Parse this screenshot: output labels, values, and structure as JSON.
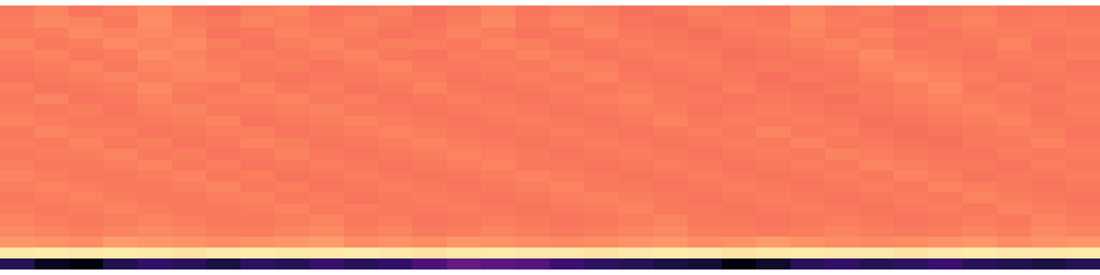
{
  "chart_data": {
    "type": "heatmap",
    "color": "magma",
    "tick_labels": false,
    "zlim": [
      0,
      1
    ],
    "cells": [
      [
        0.72,
        0.74,
        0.71,
        0.73,
        0.75,
        0.72,
        0.7,
        0.73,
        0.74,
        0.71,
        0.72,
        0.73,
        0.7,
        0.72,
        0.74,
        0.71,
        0.73,
        0.72,
        0.7,
        0.71,
        0.73,
        0.72,
        0.71,
        0.74,
        0.72,
        0.73,
        0.7,
        0.72,
        0.73,
        0.71,
        0.72,
        0.71
      ],
      [
        0.73,
        0.75,
        0.74,
        0.72,
        0.76,
        0.73,
        0.72,
        0.74,
        0.73,
        0.72,
        0.74,
        0.72,
        0.71,
        0.73,
        0.75,
        0.72,
        0.74,
        0.73,
        0.71,
        0.7,
        0.72,
        0.73,
        0.72,
        0.75,
        0.73,
        0.72,
        0.71,
        0.73,
        0.74,
        0.72,
        0.73,
        0.72
      ],
      [
        0.72,
        0.73,
        0.75,
        0.74,
        0.75,
        0.74,
        0.71,
        0.72,
        0.74,
        0.73,
        0.73,
        0.71,
        0.72,
        0.74,
        0.73,
        0.71,
        0.72,
        0.74,
        0.72,
        0.71,
        0.7,
        0.72,
        0.73,
        0.74,
        0.72,
        0.74,
        0.72,
        0.71,
        0.73,
        0.73,
        0.72,
        0.73
      ],
      [
        0.74,
        0.72,
        0.73,
        0.75,
        0.74,
        0.75,
        0.73,
        0.71,
        0.73,
        0.74,
        0.72,
        0.73,
        0.73,
        0.72,
        0.74,
        0.73,
        0.71,
        0.72,
        0.73,
        0.72,
        0.71,
        0.71,
        0.72,
        0.73,
        0.74,
        0.73,
        0.71,
        0.72,
        0.72,
        0.74,
        0.71,
        0.72
      ],
      [
        0.73,
        0.74,
        0.72,
        0.73,
        0.76,
        0.74,
        0.72,
        0.73,
        0.72,
        0.73,
        0.74,
        0.72,
        0.71,
        0.73,
        0.72,
        0.74,
        0.73,
        0.71,
        0.72,
        0.73,
        0.72,
        0.7,
        0.71,
        0.72,
        0.73,
        0.75,
        0.73,
        0.72,
        0.71,
        0.73,
        0.72,
        0.73
      ],
      [
        0.72,
        0.73,
        0.74,
        0.72,
        0.74,
        0.75,
        0.73,
        0.72,
        0.73,
        0.71,
        0.73,
        0.74,
        0.72,
        0.72,
        0.73,
        0.72,
        0.74,
        0.73,
        0.71,
        0.72,
        0.73,
        0.71,
        0.72,
        0.71,
        0.72,
        0.74,
        0.74,
        0.73,
        0.72,
        0.72,
        0.73,
        0.71
      ],
      [
        0.71,
        0.72,
        0.73,
        0.74,
        0.73,
        0.74,
        0.74,
        0.72,
        0.71,
        0.72,
        0.72,
        0.73,
        0.73,
        0.71,
        0.72,
        0.73,
        0.72,
        0.74,
        0.72,
        0.71,
        0.72,
        0.72,
        0.7,
        0.72,
        0.71,
        0.73,
        0.75,
        0.74,
        0.73,
        0.71,
        0.72,
        0.72
      ],
      [
        0.73,
        0.71,
        0.72,
        0.73,
        0.75,
        0.73,
        0.72,
        0.74,
        0.72,
        0.73,
        0.71,
        0.72,
        0.74,
        0.72,
        0.71,
        0.72,
        0.73,
        0.72,
        0.73,
        0.72,
        0.71,
        0.73,
        0.71,
        0.7,
        0.72,
        0.72,
        0.73,
        0.75,
        0.72,
        0.73,
        0.71,
        0.73
      ],
      [
        0.72,
        0.74,
        0.71,
        0.72,
        0.74,
        0.72,
        0.73,
        0.73,
        0.74,
        0.72,
        0.73,
        0.71,
        0.72,
        0.73,
        0.72,
        0.71,
        0.72,
        0.73,
        0.74,
        0.72,
        0.72,
        0.71,
        0.72,
        0.71,
        0.7,
        0.72,
        0.73,
        0.74,
        0.73,
        0.72,
        0.72,
        0.72
      ],
      [
        0.73,
        0.72,
        0.73,
        0.71,
        0.73,
        0.74,
        0.72,
        0.72,
        0.73,
        0.74,
        0.72,
        0.72,
        0.71,
        0.72,
        0.73,
        0.72,
        0.71,
        0.72,
        0.73,
        0.73,
        0.71,
        0.72,
        0.73,
        0.72,
        0.71,
        0.71,
        0.72,
        0.73,
        0.74,
        0.73,
        0.71,
        0.73
      ],
      [
        0.74,
        0.73,
        0.72,
        0.72,
        0.72,
        0.73,
        0.74,
        0.71,
        0.72,
        0.73,
        0.74,
        0.73,
        0.72,
        0.71,
        0.72,
        0.73,
        0.72,
        0.71,
        0.72,
        0.74,
        0.72,
        0.73,
        0.72,
        0.73,
        0.72,
        0.7,
        0.71,
        0.72,
        0.73,
        0.74,
        0.72,
        0.72
      ],
      [
        0.72,
        0.74,
        0.73,
        0.73,
        0.71,
        0.72,
        0.73,
        0.73,
        0.71,
        0.72,
        0.73,
        0.74,
        0.73,
        0.72,
        0.71,
        0.72,
        0.73,
        0.72,
        0.71,
        0.72,
        0.73,
        0.72,
        0.74,
        0.72,
        0.73,
        0.71,
        0.7,
        0.71,
        0.72,
        0.73,
        0.73,
        0.71
      ],
      [
        0.73,
        0.72,
        0.74,
        0.72,
        0.73,
        0.71,
        0.72,
        0.74,
        0.73,
        0.71,
        0.72,
        0.73,
        0.74,
        0.73,
        0.72,
        0.71,
        0.72,
        0.73,
        0.72,
        0.71,
        0.72,
        0.73,
        0.72,
        0.74,
        0.72,
        0.72,
        0.71,
        0.7,
        0.72,
        0.72,
        0.74,
        0.72
      ],
      [
        0.72,
        0.73,
        0.73,
        0.74,
        0.72,
        0.73,
        0.71,
        0.72,
        0.74,
        0.72,
        0.71,
        0.72,
        0.73,
        0.74,
        0.73,
        0.72,
        0.71,
        0.72,
        0.73,
        0.72,
        0.71,
        0.72,
        0.73,
        0.72,
        0.74,
        0.73,
        0.72,
        0.71,
        0.71,
        0.73,
        0.72,
        0.73
      ],
      [
        0.73,
        0.72,
        0.72,
        0.73,
        0.74,
        0.72,
        0.73,
        0.71,
        0.72,
        0.73,
        0.72,
        0.71,
        0.72,
        0.73,
        0.74,
        0.72,
        0.72,
        0.71,
        0.72,
        0.73,
        0.72,
        0.71,
        0.72,
        0.73,
        0.72,
        0.74,
        0.73,
        0.72,
        0.72,
        0.71,
        0.73,
        0.72
      ],
      [
        0.74,
        0.73,
        0.72,
        0.72,
        0.73,
        0.74,
        0.72,
        0.73,
        0.71,
        0.72,
        0.73,
        0.72,
        0.71,
        0.72,
        0.73,
        0.74,
        0.73,
        0.72,
        0.71,
        0.72,
        0.73,
        0.72,
        0.71,
        0.72,
        0.73,
        0.72,
        0.74,
        0.73,
        0.71,
        0.72,
        0.72,
        0.73
      ],
      [
        0.73,
        0.74,
        0.73,
        0.72,
        0.72,
        0.73,
        0.74,
        0.72,
        0.73,
        0.71,
        0.72,
        0.73,
        0.72,
        0.71,
        0.72,
        0.73,
        0.74,
        0.72,
        0.72,
        0.71,
        0.72,
        0.73,
        0.72,
        0.71,
        0.72,
        0.73,
        0.72,
        0.74,
        0.73,
        0.72,
        0.71,
        0.72
      ],
      [
        0.72,
        0.73,
        0.74,
        0.73,
        0.72,
        0.72,
        0.73,
        0.74,
        0.72,
        0.73,
        0.71,
        0.72,
        0.73,
        0.72,
        0.71,
        0.72,
        0.73,
        0.74,
        0.73,
        0.72,
        0.71,
        0.72,
        0.73,
        0.72,
        0.71,
        0.72,
        0.73,
        0.72,
        0.74,
        0.73,
        0.72,
        0.71
      ],
      [
        0.73,
        0.72,
        0.73,
        0.74,
        0.73,
        0.72,
        0.72,
        0.73,
        0.74,
        0.72,
        0.73,
        0.72,
        0.72,
        0.73,
        0.72,
        0.71,
        0.72,
        0.73,
        0.74,
        0.72,
        0.72,
        0.71,
        0.72,
        0.73,
        0.72,
        0.71,
        0.72,
        0.73,
        0.72,
        0.74,
        0.73,
        0.72
      ],
      [
        0.74,
        0.73,
        0.72,
        0.73,
        0.74,
        0.73,
        0.72,
        0.72,
        0.73,
        0.74,
        0.72,
        0.73,
        0.71,
        0.72,
        0.73,
        0.72,
        0.71,
        0.72,
        0.73,
        0.74,
        0.72,
        0.72,
        0.71,
        0.72,
        0.73,
        0.72,
        0.71,
        0.72,
        0.73,
        0.72,
        0.74,
        0.73
      ],
      [
        0.75,
        0.74,
        0.73,
        0.74,
        0.75,
        0.74,
        0.73,
        0.73,
        0.74,
        0.75,
        0.73,
        0.74,
        0.72,
        0.73,
        0.74,
        0.73,
        0.72,
        0.73,
        0.74,
        0.75,
        0.73,
        0.73,
        0.72,
        0.73,
        0.74,
        0.73,
        0.72,
        0.73,
        0.74,
        0.73,
        0.75,
        0.74
      ],
      [
        0.78,
        0.77,
        0.76,
        0.79,
        0.78,
        0.77,
        0.76,
        0.77,
        0.78,
        0.79,
        0.76,
        0.77,
        0.76,
        0.78,
        0.77,
        0.76,
        0.75,
        0.76,
        0.77,
        0.78,
        0.76,
        0.77,
        0.79,
        0.77,
        0.76,
        0.75,
        0.76,
        0.77,
        0.78,
        0.76,
        0.77,
        0.78
      ],
      [
        0.95,
        0.96,
        0.95,
        0.96,
        0.95,
        0.94,
        0.95,
        0.96,
        0.95,
        0.95,
        0.96,
        0.95,
        0.94,
        0.95,
        0.96,
        0.95,
        0.95,
        0.94,
        0.95,
        0.96,
        0.95,
        0.94,
        0.95,
        0.96,
        0.95,
        0.95,
        0.94,
        0.95,
        0.96,
        0.95,
        0.95,
        0.96
      ],
      [
        0.15,
        0.06,
        0.03,
        0.14,
        0.18,
        0.16,
        0.12,
        0.17,
        0.15,
        0.19,
        0.16,
        0.18,
        0.24,
        0.3,
        0.28,
        0.26,
        0.2,
        0.17,
        0.15,
        0.12,
        0.1,
        0.03,
        0.08,
        0.16,
        0.18,
        0.15,
        0.17,
        0.2,
        0.16,
        0.14,
        0.12,
        0.15
      ]
    ]
  }
}
